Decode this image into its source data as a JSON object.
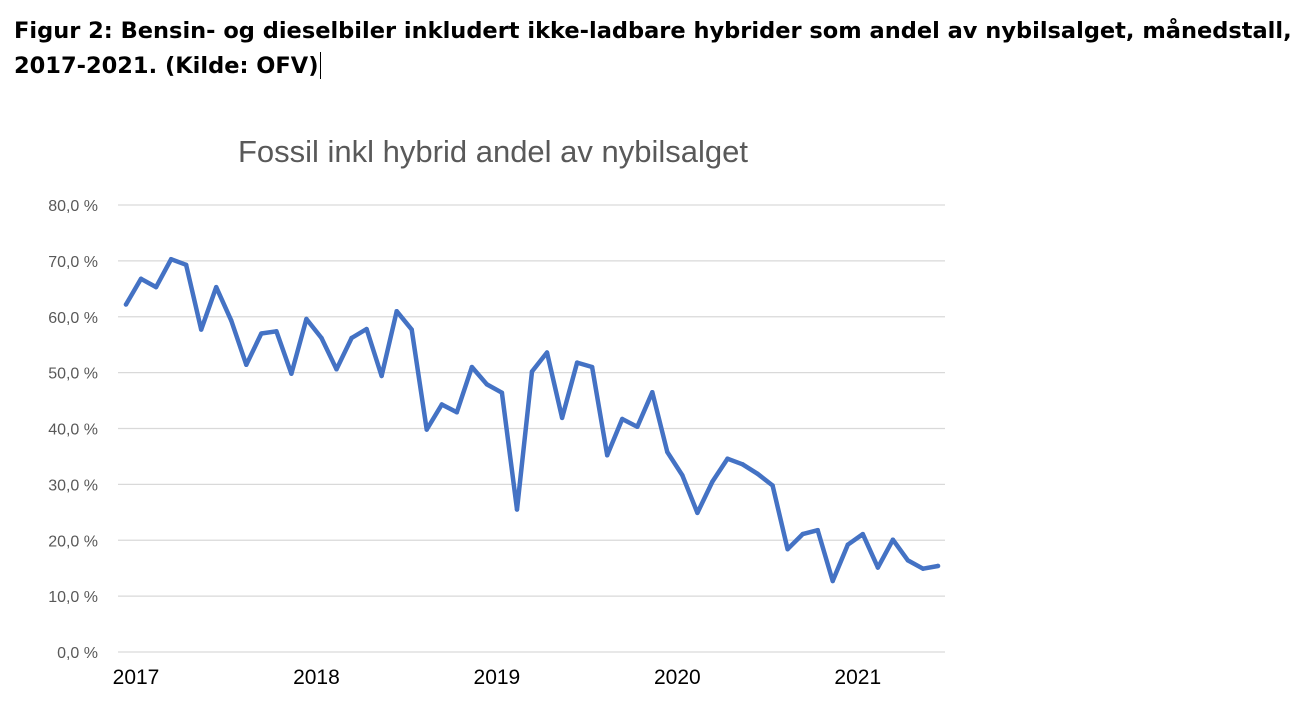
{
  "figure_caption": {
    "line1": "Figur 2: Bensin- og dieselbiler inkludert ikke-ladbare hybrider som andel av nybilsalget, månedstall,",
    "line2": "2017-2021. (Kilde: OFV)"
  },
  "chart_data": {
    "type": "line",
    "title": "Fossil inkl hybrid andel av nybilsalget",
    "xlabel": "",
    "ylabel": "",
    "ylim": [
      0,
      80
    ],
    "y_ticks": [
      0,
      10,
      20,
      30,
      40,
      50,
      60,
      70,
      80
    ],
    "y_tick_labels": [
      "0,0 %",
      "10,0 %",
      "20,0 %",
      "30,0 %",
      "40,0 %",
      "50,0 %",
      "60,0 %",
      "70,0 %",
      "80,0 %"
    ],
    "x_tick_labels": [
      "2017",
      "2018",
      "2019",
      "2020",
      "2021"
    ],
    "x_tick_months": [
      0,
      12,
      24,
      36,
      48
    ],
    "grid": true,
    "legend": "none",
    "line_color": "#4472C4",
    "grid_color": "#D9D9D9",
    "series": [
      {
        "values": [
          62.2,
          66.8,
          65.3,
          70.3,
          69.3,
          57.7,
          65.3,
          59.3,
          51.4,
          57.0,
          57.4,
          49.8,
          59.6,
          56.2,
          50.6,
          56.2,
          57.8,
          49.4,
          61.0,
          57.7,
          39.8,
          44.3,
          42.9,
          51.0,
          47.9,
          46.4,
          25.5,
          50.2,
          53.6,
          41.9,
          51.8,
          51.0,
          35.2,
          41.7,
          40.3,
          46.5,
          35.8,
          31.6,
          24.9,
          30.5,
          34.6,
          33.6,
          31.9,
          29.8,
          18.4,
          21.1,
          21.8,
          12.7,
          19.2,
          21.1,
          15.1,
          20.1,
          16.4,
          14.9,
          15.4
        ]
      }
    ]
  }
}
